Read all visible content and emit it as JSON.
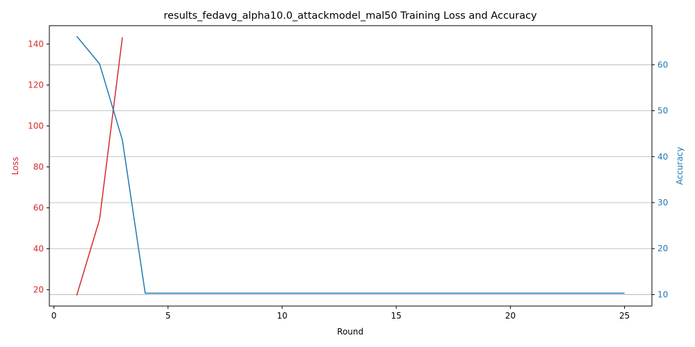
{
  "chart_data": {
    "type": "line",
    "title": "results_fedavg_alpha10.0_attackmodel_mal50 Training Loss and Accuracy",
    "xlabel": "Round",
    "ylabel_left": "Loss",
    "ylabel_right": "Accuracy",
    "xlim": [
      -0.2,
      26.2
    ],
    "ylim_left": [
      12,
      149
    ],
    "ylim_right": [
      7.5,
      68.5
    ],
    "xticks": [
      0,
      5,
      10,
      15,
      20,
      25
    ],
    "yticks_left": [
      20,
      40,
      60,
      80,
      100,
      120,
      140
    ],
    "yticks_right": [
      10,
      20,
      30,
      40,
      50,
      60
    ],
    "grid": "horizontal, right axis",
    "colors": {
      "loss": "#d62728",
      "accuracy": "#1f77b4"
    },
    "series": [
      {
        "axis": "left",
        "color": "#d62728",
        "x": [
          1,
          2,
          3
        ],
        "values": [
          17.2,
          54.3,
          143.3
        ]
      },
      {
        "axis": "right",
        "color": "#1f77b4",
        "x": [
          1,
          2,
          3,
          4,
          5,
          6,
          7,
          8,
          9,
          10,
          11,
          12,
          13,
          14,
          15,
          16,
          17,
          18,
          19,
          20,
          21,
          22,
          23,
          24,
          25
        ],
        "values": [
          66.2,
          60.2,
          43.6,
          10.3,
          10.3,
          10.3,
          10.3,
          10.3,
          10.3,
          10.3,
          10.3,
          10.3,
          10.3,
          10.3,
          10.3,
          10.3,
          10.3,
          10.3,
          10.3,
          10.3,
          10.3,
          10.3,
          10.3,
          10.3,
          10.3
        ]
      }
    ]
  }
}
